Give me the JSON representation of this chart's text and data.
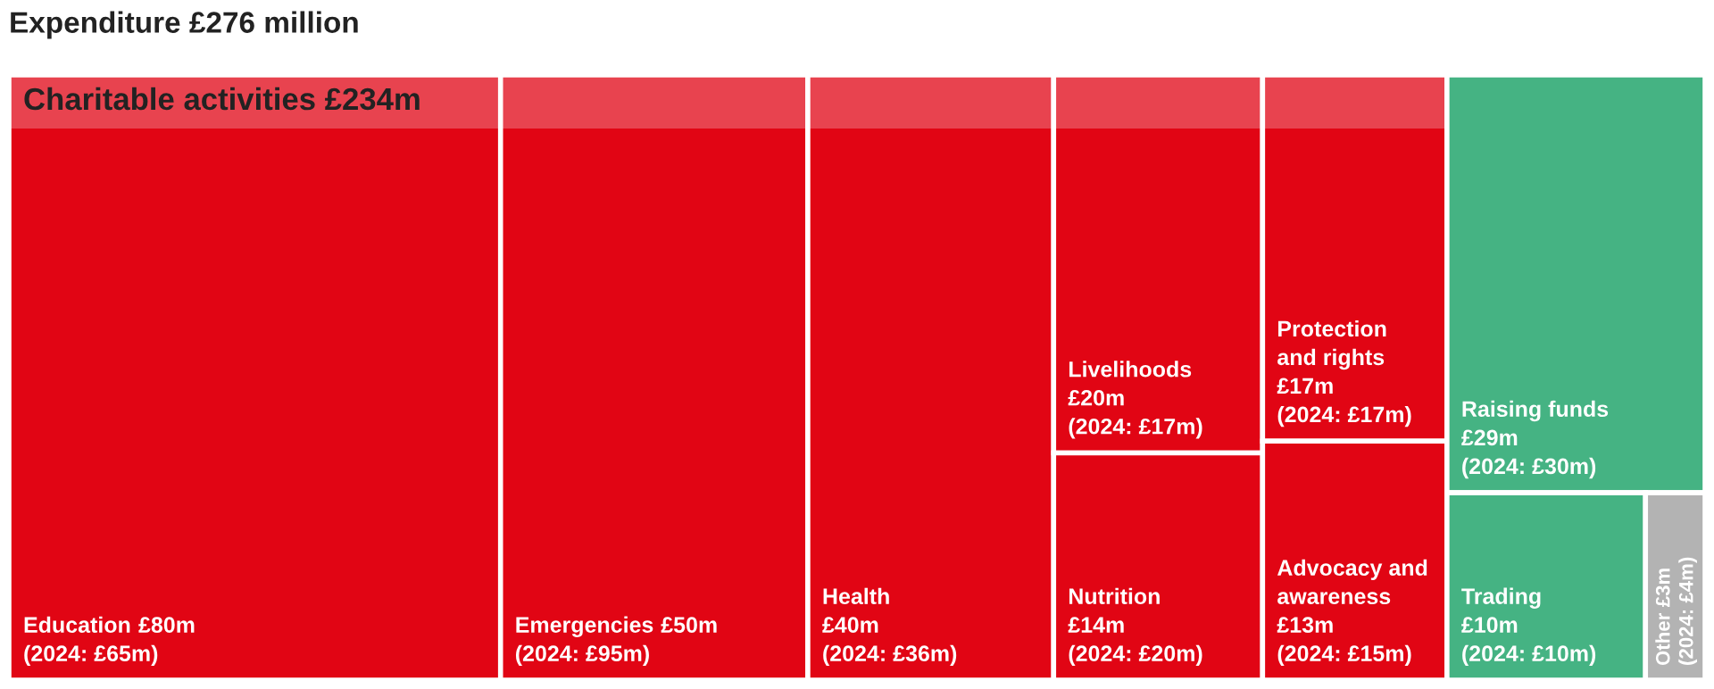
{
  "chart_data": {
    "type": "other",
    "title": "Expenditure £276 million",
    "categories": [
      "Education",
      "Emergencies",
      "Health",
      "Livelihoods",
      "Nutrition",
      "Protection\nand rights",
      "Advocacy and\nawareness",
      "Raising funds",
      "Trading",
      "Other"
    ],
    "values": [
      80,
      50,
      40,
      20,
      14,
      17,
      13,
      29,
      10,
      3
    ],
    "colors": [
      "#e10514",
      "#e10514",
      "#e10514",
      "#e10514",
      "#e10514",
      "#e10514",
      "#e10514",
      "#45b383",
      "#45b383",
      "#b3b3b3"
    ],
    "value_labels": [
      "£80m",
      "£50m",
      "£40m",
      "£20m",
      "£14m",
      "£17m",
      "£13m",
      "£29m",
      "£10m",
      "£3m"
    ],
    "annotations": [
      "Charitable activities £234m",
      "(2024: £65m)",
      "(2024: £95m)",
      "(2024: £36m)",
      "(2024: £17m)",
      "(2024: £20m)",
      "(2024: £17m)",
      "(2024: £15m)",
      "(2024: £30m)",
      "(2024: £10m)",
      "(2024: £4m)"
    ]
  }
}
